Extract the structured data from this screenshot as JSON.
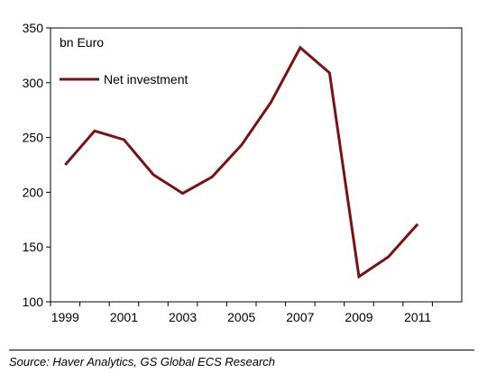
{
  "chart_data": {
    "type": "line",
    "unit_label": "bn Euro",
    "x": [
      1999,
      2000,
      2001,
      2002,
      2003,
      2004,
      2005,
      2006,
      2007,
      2008,
      2009,
      2010,
      2011
    ],
    "x_tick_labels": [
      "1999",
      "2001",
      "2003",
      "2005",
      "2007",
      "2009",
      "2011"
    ],
    "y_ticks": [
      100,
      150,
      200,
      250,
      300,
      350
    ],
    "ylim": [
      100,
      350
    ],
    "xlim": [
      1998.5,
      2012.5
    ],
    "grid": false,
    "legend_position": "top-left",
    "series": [
      {
        "name": "Net investment",
        "color": "#7b1113",
        "values": [
          225,
          256,
          248,
          216,
          199,
          214,
          243,
          282,
          332,
          309,
          123,
          141,
          171
        ]
      }
    ]
  },
  "source": "Source: Haver Analytics, GS Global ECS Research"
}
